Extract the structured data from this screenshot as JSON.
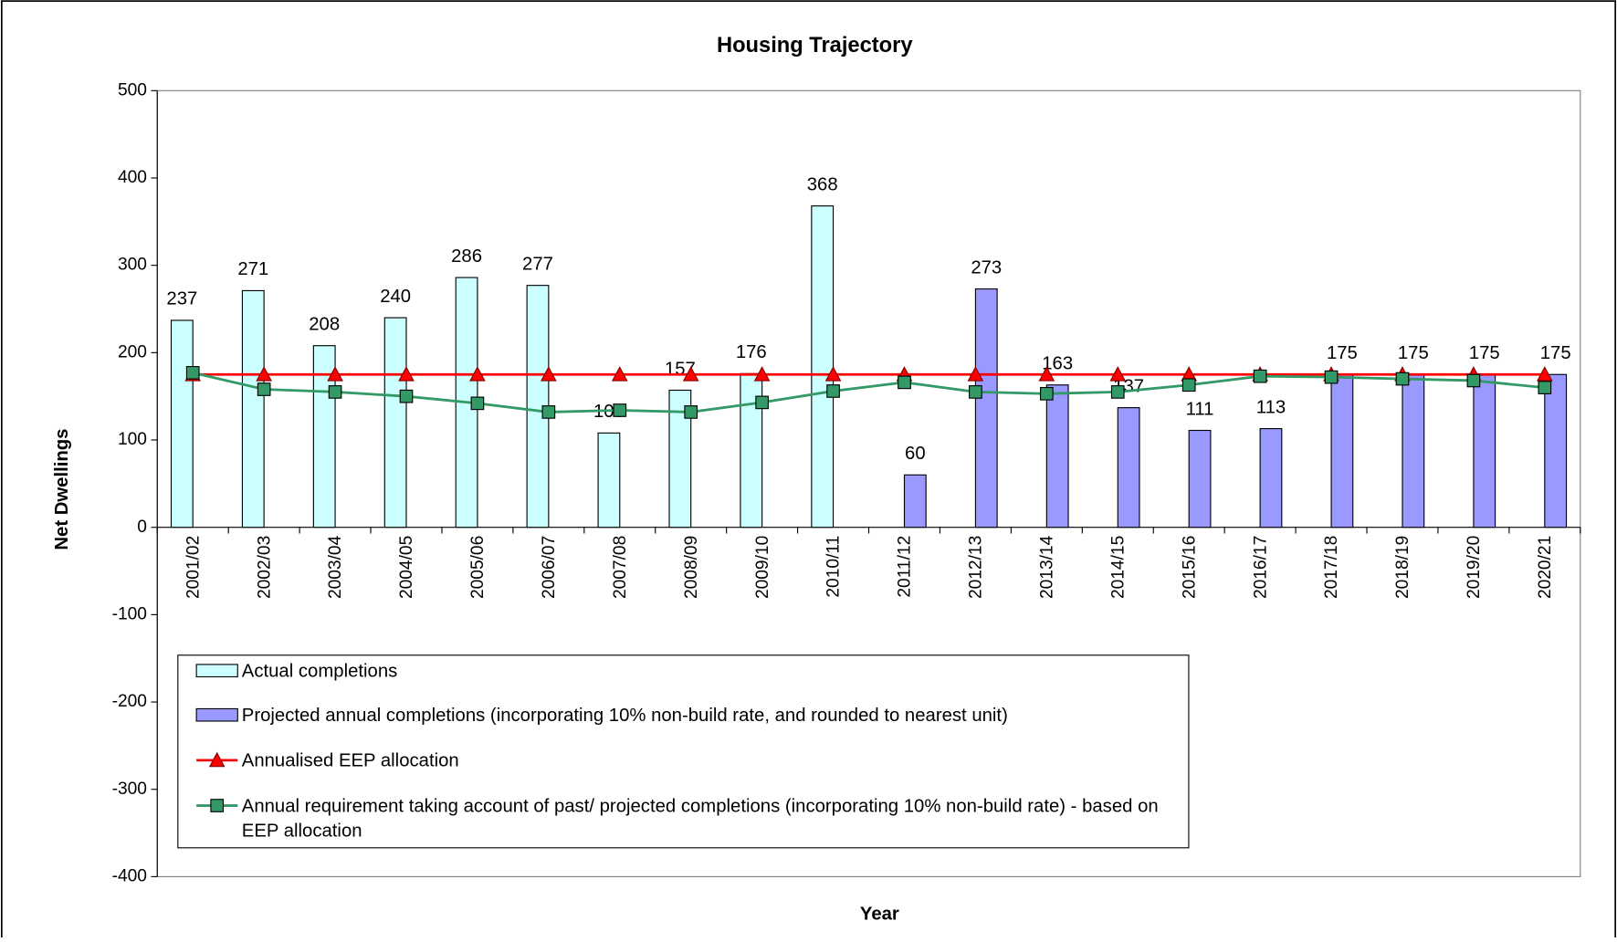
{
  "chart_data": {
    "type": "bar",
    "title": "Housing Trajectory",
    "x_label": "Year",
    "y_label": "Net Dwellings",
    "categories": [
      "2001/02",
      "2002/03",
      "2003/04",
      "2004/05",
      "2005/06",
      "2006/07",
      "2007/08",
      "2008/09",
      "2009/10",
      "2010/11",
      "2011/12",
      "2012/13",
      "2013/14",
      "2014/15",
      "2015/16",
      "2016/17",
      "2017/18",
      "2018/19",
      "2019/20",
      "2020/21"
    ],
    "series": [
      {
        "name": "Actual completions",
        "type": "bar",
        "color": "#ccffff",
        "values": [
          237,
          271,
          208,
          240,
          286,
          277,
          108,
          157,
          176,
          368,
          null,
          null,
          null,
          null,
          null,
          null,
          null,
          null,
          null,
          null
        ]
      },
      {
        "name": "Projected annual completions (incorporating 10% non-build rate, and rounded to nearest unit)",
        "type": "bar",
        "color": "#9999ff",
        "values": [
          null,
          null,
          null,
          null,
          null,
          null,
          null,
          null,
          null,
          null,
          60,
          273,
          163,
          137,
          111,
          113,
          175,
          175,
          175,
          175
        ]
      },
      {
        "name": "Annualised EEP allocation",
        "type": "line",
        "marker": "triangle",
        "color": "#ff0000",
        "values": [
          175,
          175,
          175,
          175,
          175,
          175,
          175,
          175,
          175,
          175,
          175,
          175,
          175,
          175,
          175,
          175,
          175,
          175,
          175,
          175
        ]
      },
      {
        "name": "Annual requirement taking account of past/ projected completions (incorporating 10% non-build rate) - based on EEP allocation",
        "type": "line",
        "marker": "square",
        "color": "#339966",
        "values": [
          177,
          158,
          155,
          150,
          142,
          132,
          134,
          132,
          143,
          156,
          166,
          155,
          153,
          155,
          163,
          173,
          172,
          170,
          168,
          160
        ]
      }
    ],
    "ylim": [
      -400,
      500
    ],
    "yticks": [
      -400,
      -300,
      -200,
      -100,
      0,
      100,
      200,
      300,
      400,
      500
    ],
    "grid": false
  }
}
